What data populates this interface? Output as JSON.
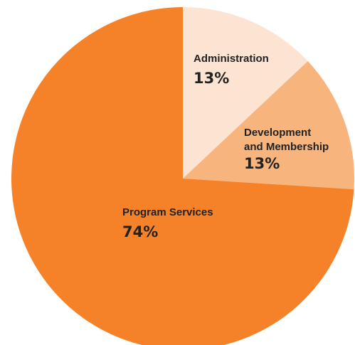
{
  "chart_data": {
    "type": "pie",
    "title": "",
    "categories": [
      "Administration",
      "Development and Membership",
      "Program Services"
    ],
    "values": [
      13,
      13,
      74
    ],
    "label_lines": [
      [
        "Administration"
      ],
      [
        "Development",
        "and Membership"
      ],
      [
        "Program Services"
      ]
    ],
    "value_labels": [
      "13%",
      "13%",
      "74%"
    ],
    "colors": [
      "#fde4d2",
      "#f8b47d",
      "#f58228"
    ],
    "start_angle_deg": 0,
    "direction": "clockwise",
    "legend": "none"
  }
}
